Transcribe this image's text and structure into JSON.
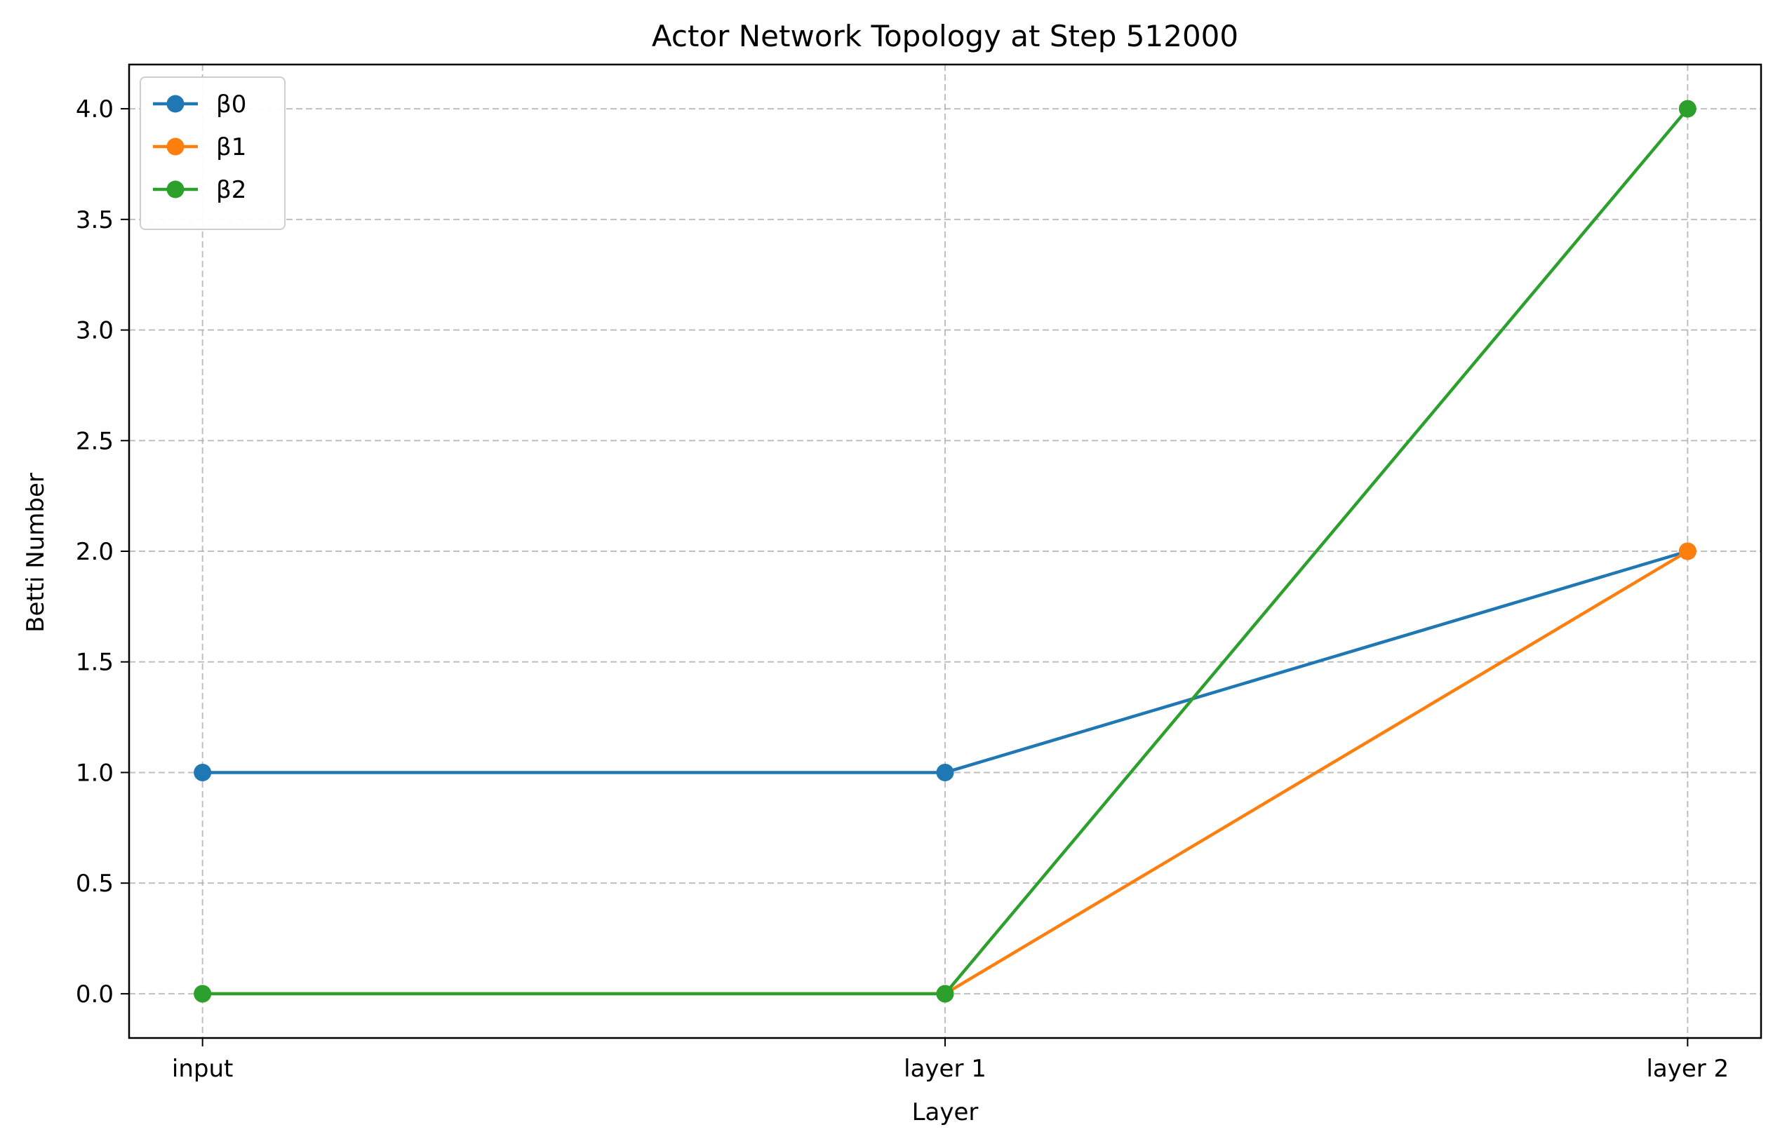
{
  "chart_data": {
    "type": "line",
    "title": "Actor Network Topology at Step 512000",
    "xlabel": "Layer",
    "ylabel": "Betti Number",
    "categories": [
      "input",
      "layer 1",
      "layer 2"
    ],
    "ylim": [
      -0.2,
      4.2
    ],
    "yticks": [
      "0.0",
      "0.5",
      "1.0",
      "1.5",
      "2.0",
      "2.5",
      "3.0",
      "3.5",
      "4.0"
    ],
    "ytick_values": [
      0,
      0.5,
      1,
      1.5,
      2,
      2.5,
      3,
      3.5,
      4
    ],
    "grid": true,
    "legend_position": "top-left",
    "series": [
      {
        "name": "β0",
        "color": "#1f77b4",
        "values": [
          1,
          1,
          2
        ]
      },
      {
        "name": "β1",
        "color": "#ff7f0e",
        "values": [
          0,
          0,
          2
        ]
      },
      {
        "name": "β2",
        "color": "#2ca02c",
        "values": [
          0,
          0,
          4
        ]
      }
    ]
  }
}
